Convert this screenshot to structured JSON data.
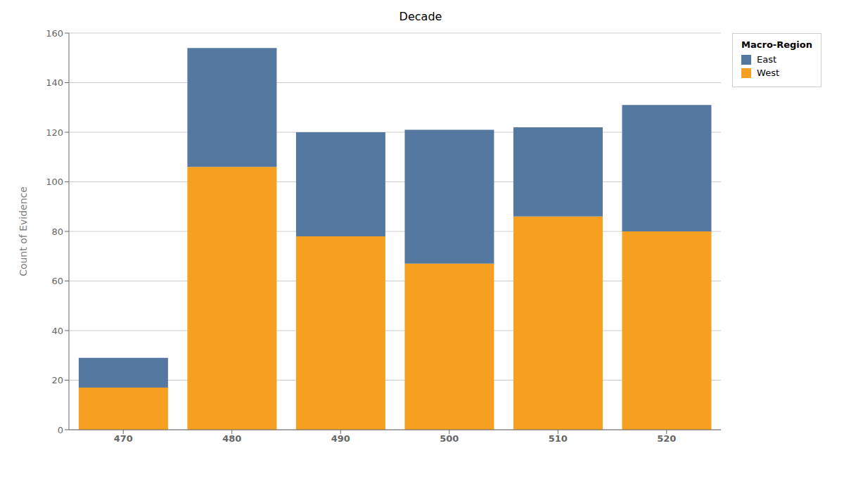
{
  "chart_data": {
    "type": "bar",
    "title": "Decade",
    "ylabel": "Count of Evidence",
    "categories": [
      "470",
      "480",
      "490",
      "500",
      "510",
      "520"
    ],
    "series": [
      {
        "name": "West",
        "color": "#F5A020",
        "values": [
          17,
          106,
          78,
          67,
          86,
          80
        ]
      },
      {
        "name": "East",
        "color": "#5578A0",
        "values": [
          12,
          48,
          42,
          54,
          36,
          51
        ]
      }
    ],
    "stacked": true,
    "ylim": [
      0,
      160
    ],
    "yticks": [
      0,
      20,
      40,
      60,
      80,
      100,
      120,
      140,
      160
    ],
    "grid": true,
    "legend": "upper right",
    "legend_title": "Macro-Region"
  }
}
